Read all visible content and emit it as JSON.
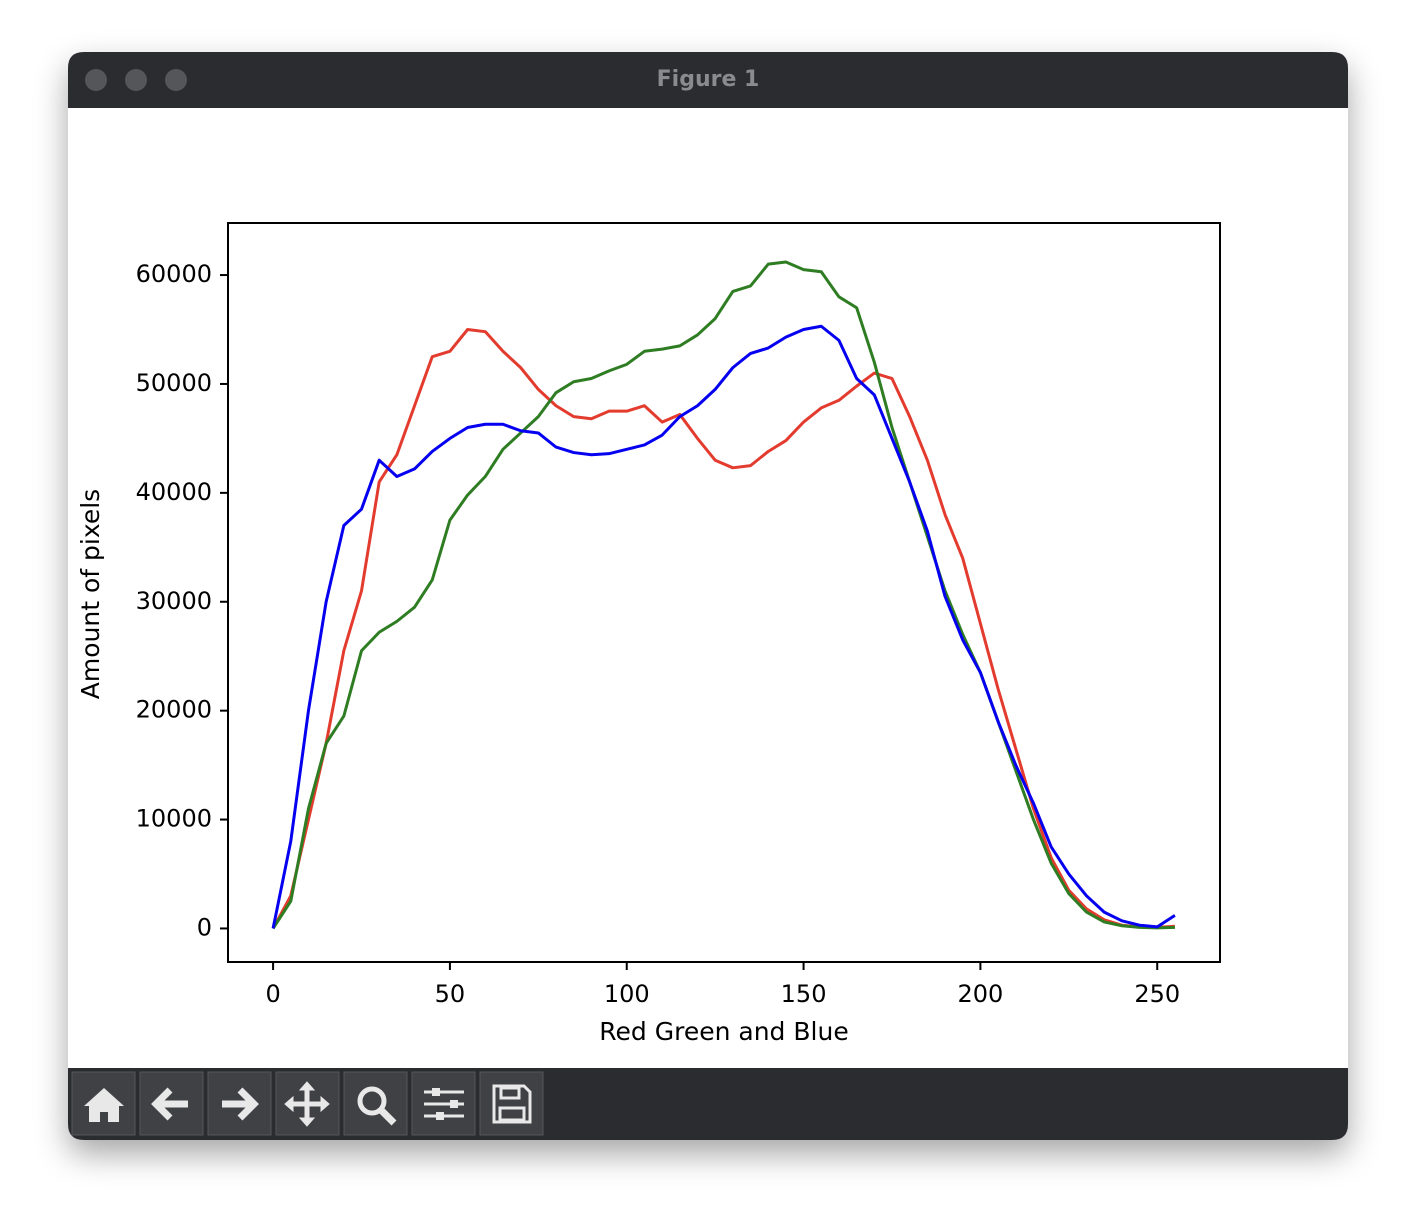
{
  "window": {
    "title": "Figure 1"
  },
  "chart_data": {
    "type": "line",
    "xlabel": "Red Green and Blue",
    "ylabel": "Amount of pixels",
    "x": [
      0,
      5,
      10,
      15,
      20,
      25,
      30,
      35,
      40,
      45,
      50,
      55,
      60,
      65,
      70,
      75,
      80,
      85,
      90,
      95,
      100,
      105,
      110,
      115,
      120,
      125,
      130,
      135,
      140,
      145,
      150,
      155,
      160,
      165,
      170,
      175,
      180,
      185,
      190,
      195,
      200,
      205,
      210,
      215,
      220,
      225,
      230,
      235,
      240,
      245,
      250,
      255
    ],
    "series": [
      {
        "color": "#e33b2e",
        "values": [
          0,
          3000,
          10000,
          17000,
          25500,
          31000,
          41000,
          43500,
          48000,
          52500,
          53000,
          55000,
          54800,
          53000,
          51500,
          49500,
          48000,
          47000,
          46800,
          47500,
          47500,
          48000,
          46500,
          47200,
          45000,
          43000,
          42300,
          42500,
          43800,
          44800,
          46500,
          47800,
          48500,
          49800,
          51000,
          50500,
          47000,
          43000,
          38000,
          34000,
          28000,
          22000,
          16500,
          11000,
          6500,
          3500,
          1800,
          800,
          300,
          150,
          100,
          200
        ]
      },
      {
        "color": "#2f7d23",
        "values": [
          0,
          2500,
          11000,
          17000,
          19500,
          25500,
          27200,
          28200,
          29500,
          32000,
          37500,
          39800,
          41500,
          44000,
          45500,
          47000,
          49200,
          50200,
          50500,
          51200,
          51800,
          53000,
          53200,
          53500,
          54500,
          56000,
          58500,
          59000,
          61000,
          61200,
          60500,
          60300,
          58000,
          57000,
          52000,
          46000,
          41000,
          36000,
          31000,
          27000,
          23500,
          19000,
          14500,
          10000,
          6000,
          3200,
          1500,
          600,
          250,
          100,
          50,
          100
        ]
      },
      {
        "color": "#0500f0",
        "values": [
          0,
          8000,
          20000,
          30000,
          37000,
          38500,
          43000,
          41500,
          42200,
          43800,
          45000,
          46000,
          46300,
          46300,
          45700,
          45500,
          44200,
          43700,
          43500,
          43600,
          44000,
          44400,
          45300,
          47000,
          48000,
          49500,
          51500,
          52800,
          53300,
          54300,
          55000,
          55300,
          54000,
          50500,
          49000,
          45000,
          41000,
          36500,
          30500,
          26500,
          23500,
          19000,
          15000,
          11500,
          7500,
          5000,
          3000,
          1500,
          700,
          300,
          150,
          1200
        ]
      }
    ],
    "xlim": [
      -12.75,
      267.75
    ],
    "ylim": [
      -3080,
      64780
    ],
    "xticks": [
      0,
      50,
      100,
      150,
      200,
      250
    ],
    "yticks": [
      0,
      10000,
      20000,
      30000,
      40000,
      50000,
      60000
    ]
  }
}
